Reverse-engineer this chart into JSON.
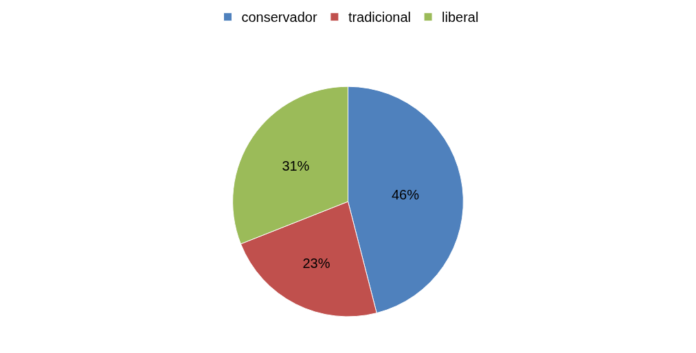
{
  "chart_data": {
    "type": "pie",
    "categories": [
      "conservador",
      "tradicional",
      "liberal"
    ],
    "values": [
      46,
      23,
      31
    ],
    "colors": [
      "#4f81bd",
      "#c0504d",
      "#9bbb59"
    ],
    "value_labels": [
      "46%",
      "23%",
      "31%"
    ],
    "legend": "top"
  }
}
